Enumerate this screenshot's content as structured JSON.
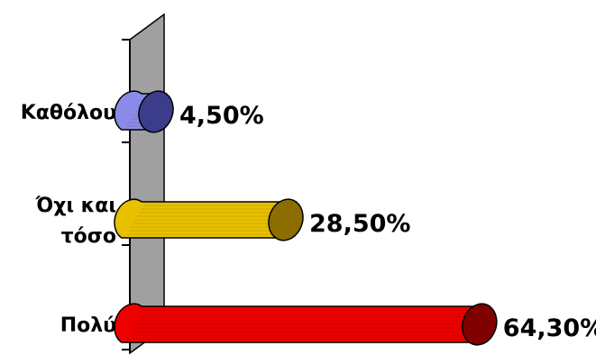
{
  "chart_data": {
    "type": "bar",
    "orientation": "horizontal",
    "style": "3d-cylinder",
    "title": "",
    "xlabel": "",
    "ylabel": "",
    "xlim": [
      0,
      100
    ],
    "grid": false,
    "legend": "none",
    "categories": [
      [
        "Καθόλου"
      ],
      [
        "Όχι και",
        "τόσο"
      ],
      [
        "Πολύ"
      ]
    ],
    "values": [
      4.5,
      28.5,
      64.3
    ],
    "value_labels": [
      "4,50%",
      "28,50%",
      "64,30%"
    ],
    "colors": {
      "bars": [
        "#8a8ae8",
        "#e8c000",
        "#ee0000"
      ],
      "bar_end_caps": [
        "#3c3c8c",
        "#8c6e00",
        "#800000"
      ],
      "back_wall": "#a0a0a0",
      "axis": "#000000"
    }
  }
}
